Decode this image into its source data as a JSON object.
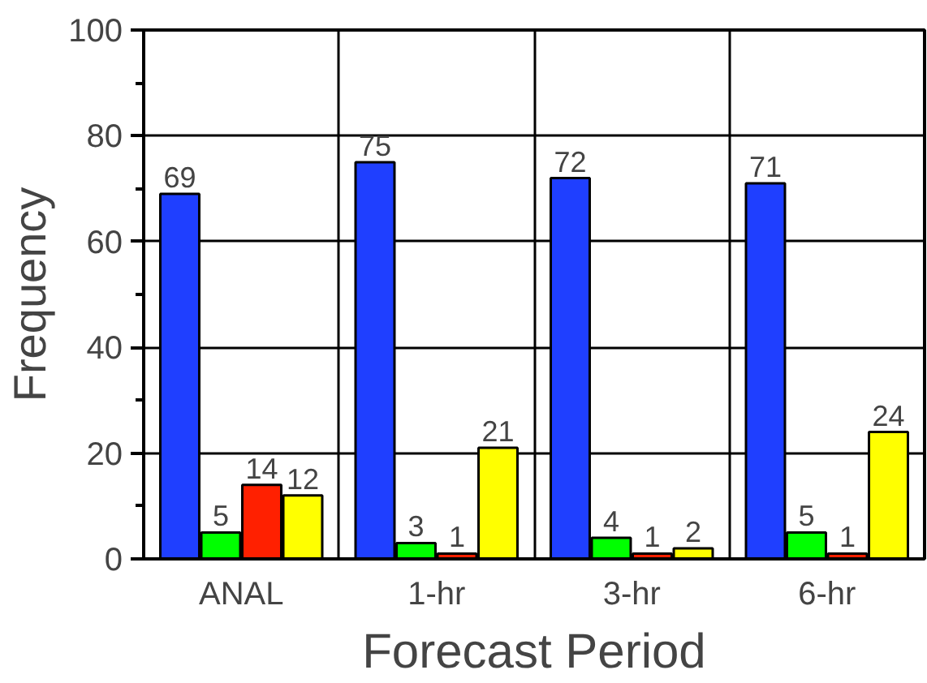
{
  "chart_data": {
    "type": "bar",
    "xlabel": "Forecast Period",
    "ylabel": "Frequency",
    "categories": [
      "ANAL",
      "1-hr",
      "3-hr",
      "6-hr"
    ],
    "series": [
      {
        "color": "#1f3fff",
        "values": [
          69,
          75,
          72,
          71
        ]
      },
      {
        "color": "#00ff00",
        "values": [
          5,
          3,
          4,
          5
        ]
      },
      {
        "color": "#ff2000",
        "values": [
          14,
          1,
          1,
          1
        ]
      },
      {
        "color": "#ffff00",
        "values": [
          12,
          21,
          2,
          24
        ]
      }
    ],
    "ylim": [
      0,
      100
    ],
    "yticks": [
      0,
      {
        "value": 10,
        "label": null
      },
      20,
      {
        "value": 30,
        "label": null
      },
      40,
      {
        "value": 50,
        "label": null
      },
      60,
      {
        "value": 70,
        "label": null
      },
      80,
      {
        "value": 90,
        "label": null
      },
      100
    ],
    "grid": true,
    "data_labels": true
  }
}
